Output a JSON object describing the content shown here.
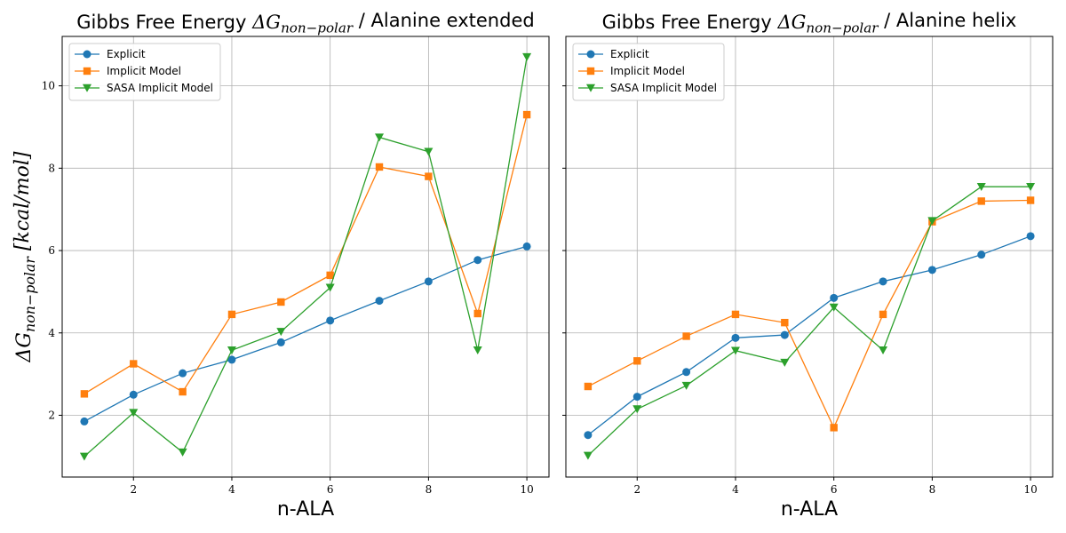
{
  "chart_data": [
    {
      "type": "line",
      "title": "Gibbs Free Energy ΔG_{non−polar} / Alanine extended",
      "title_main": "Gibbs Free Energy ",
      "title_symbol": "ΔG",
      "title_sub": "non−polar",
      "title_tail": " / Alanine extended",
      "xlabel": "n-ALA",
      "ylabel": "ΔG_{non−polar} [kcal/mol]",
      "ylabel_symbol": "ΔG",
      "ylabel_sub": "non−polar",
      "ylabel_units": " [kcal/mol]",
      "xlim": [
        0.55,
        10.45
      ],
      "ylim": [
        0.5,
        11.2
      ],
      "xticks": [
        2,
        4,
        6,
        8,
        10
      ],
      "yticks": [
        2,
        4,
        6,
        8,
        10
      ],
      "grid": true,
      "legend_position": "top-left",
      "x": [
        1,
        2,
        3,
        4,
        5,
        6,
        7,
        8,
        9,
        10
      ],
      "series": [
        {
          "name": "Explicit",
          "marker": "circle",
          "color": "#1f77b4",
          "values": [
            1.85,
            2.5,
            3.02,
            3.35,
            3.77,
            4.3,
            4.78,
            5.25,
            5.77,
            6.1
          ]
        },
        {
          "name": "Implicit Model",
          "marker": "square",
          "color": "#ff7f0e",
          "values": [
            2.52,
            3.25,
            2.57,
            4.45,
            4.75,
            5.4,
            8.03,
            7.8,
            4.47,
            9.3
          ]
        },
        {
          "name": "SASA Implicit Model",
          "marker": "triangle-down",
          "color": "#2ca02c",
          "values": [
            1.0,
            2.06,
            1.1,
            3.58,
            4.03,
            5.1,
            8.75,
            8.4,
            3.58,
            10.7
          ]
        }
      ]
    },
    {
      "type": "line",
      "title": "Gibbs Free Energy ΔG_{non−polar} / Alanine helix",
      "title_main": "Gibbs Free Energy ",
      "title_symbol": "ΔG",
      "title_sub": "non−polar",
      "title_tail": " / Alanine helix",
      "xlabel": "n-ALA",
      "ylabel": "",
      "xlim": [
        0.55,
        10.45
      ],
      "ylim": [
        0.5,
        11.2
      ],
      "xticks": [
        2,
        4,
        6,
        8,
        10
      ],
      "yticks": [
        2,
        4,
        6,
        8,
        10
      ],
      "show_ytick_labels": false,
      "grid": true,
      "legend_position": "top-left",
      "x": [
        1,
        2,
        3,
        4,
        5,
        6,
        7,
        8,
        9,
        10
      ],
      "series": [
        {
          "name": "Explicit",
          "marker": "circle",
          "color": "#1f77b4",
          "values": [
            1.52,
            2.45,
            3.05,
            3.88,
            3.95,
            4.85,
            5.25,
            5.53,
            5.9,
            6.35
          ]
        },
        {
          "name": "Implicit Model",
          "marker": "square",
          "color": "#ff7f0e",
          "values": [
            2.7,
            3.32,
            3.92,
            4.45,
            4.25,
            1.7,
            4.45,
            6.7,
            7.2,
            7.22
          ]
        },
        {
          "name": "SASA Implicit Model",
          "marker": "triangle-down",
          "color": "#2ca02c",
          "values": [
            1.02,
            2.15,
            2.72,
            3.57,
            3.28,
            4.62,
            3.58,
            6.72,
            7.55,
            7.55
          ]
        }
      ]
    }
  ]
}
